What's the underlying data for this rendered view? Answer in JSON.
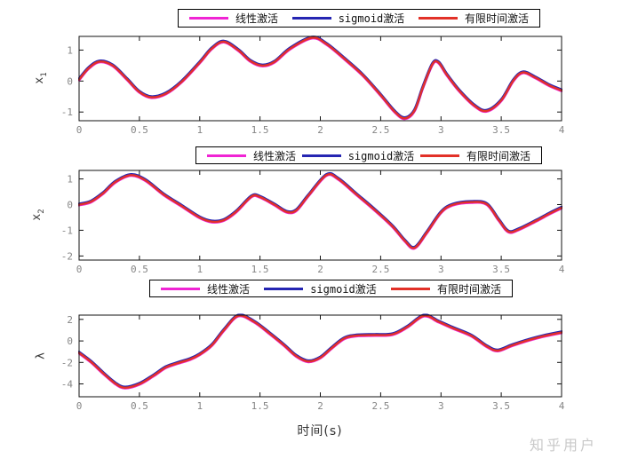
{
  "watermark": "知乎用户",
  "xlabel": "时间(s)",
  "colors": {
    "magenta": "#f024d4",
    "blue": "#2525b2",
    "red": "#e23128",
    "axis": "#111111",
    "tick_label": "#858585"
  },
  "chart_data": [
    {
      "type": "line",
      "title": "",
      "ylabel": "x_1",
      "xlabel": "",
      "xlim": [
        0,
        4
      ],
      "ylim": [
        -1.28,
        1.44
      ],
      "xticks": [
        0,
        0.5,
        1,
        1.5,
        2,
        2.5,
        3,
        3.5,
        4
      ],
      "yticks": [
        -1,
        0,
        1
      ],
      "grid": false,
      "legend_position": "above-plot",
      "series": [
        {
          "key": "linear",
          "name": "线性激活",
          "color": "#f024d4"
        },
        {
          "key": "sigmoid",
          "name": "sigmoid激活",
          "color": "#2525b2"
        },
        {
          "key": "finite-time",
          "name": "有限时间激活",
          "color": "#e23128"
        }
      ],
      "series_overlap_note": "all three series coincide visually; shared points below as [t, x1]",
      "points": [
        [
          0,
          0.05
        ],
        [
          0.08,
          0.42
        ],
        [
          0.17,
          0.63
        ],
        [
          0.28,
          0.5
        ],
        [
          0.4,
          0.05
        ],
        [
          0.5,
          -0.35
        ],
        [
          0.6,
          -0.52
        ],
        [
          0.72,
          -0.4
        ],
        [
          0.85,
          -0.02
        ],
        [
          1.0,
          0.6
        ],
        [
          1.1,
          1.05
        ],
        [
          1.2,
          1.27
        ],
        [
          1.32,
          1.0
        ],
        [
          1.42,
          0.65
        ],
        [
          1.52,
          0.5
        ],
        [
          1.62,
          0.62
        ],
        [
          1.75,
          1.05
        ],
        [
          1.93,
          1.4
        ],
        [
          2.05,
          1.2
        ],
        [
          2.2,
          0.72
        ],
        [
          2.35,
          0.2
        ],
        [
          2.5,
          -0.45
        ],
        [
          2.62,
          -1.0
        ],
        [
          2.7,
          -1.2
        ],
        [
          2.78,
          -0.95
        ],
        [
          2.85,
          -0.2
        ],
        [
          2.93,
          0.55
        ],
        [
          2.98,
          0.6
        ],
        [
          3.05,
          0.2
        ],
        [
          3.15,
          -0.3
        ],
        [
          3.28,
          -0.8
        ],
        [
          3.38,
          -0.96
        ],
        [
          3.5,
          -0.62
        ],
        [
          3.6,
          0.02
        ],
        [
          3.68,
          0.28
        ],
        [
          3.78,
          0.12
        ],
        [
          3.9,
          -0.14
        ],
        [
          4,
          -0.3
        ]
      ]
    },
    {
      "type": "line",
      "title": "",
      "ylabel": "x_2",
      "xlabel": "",
      "xlim": [
        0,
        4
      ],
      "ylim": [
        -2.16,
        1.33
      ],
      "xticks": [
        0,
        0.5,
        1,
        1.5,
        2,
        2.5,
        3,
        3.5,
        4
      ],
      "yticks": [
        -2,
        -1,
        0,
        1
      ],
      "grid": false,
      "legend_position": "above-plot",
      "series": [
        {
          "key": "linear",
          "name": "线性激活",
          "color": "#f024d4"
        },
        {
          "key": "sigmoid",
          "name": "sigmoid激活",
          "color": "#2525b2"
        },
        {
          "key": "finite-time",
          "name": "有限时间激活",
          "color": "#e23128"
        }
      ],
      "series_overlap_note": "all three series coincide visually; shared points below as [t, x2]",
      "points": [
        [
          0,
          0.0
        ],
        [
          0.1,
          0.12
        ],
        [
          0.2,
          0.45
        ],
        [
          0.3,
          0.88
        ],
        [
          0.43,
          1.15
        ],
        [
          0.55,
          0.95
        ],
        [
          0.7,
          0.4
        ],
        [
          0.85,
          -0.05
        ],
        [
          1.0,
          -0.5
        ],
        [
          1.1,
          -0.66
        ],
        [
          1.2,
          -0.6
        ],
        [
          1.3,
          -0.28
        ],
        [
          1.43,
          0.32
        ],
        [
          1.5,
          0.3
        ],
        [
          1.62,
          0.0
        ],
        [
          1.72,
          -0.28
        ],
        [
          1.8,
          -0.22
        ],
        [
          1.9,
          0.35
        ],
        [
          2.05,
          1.15
        ],
        [
          2.15,
          1.0
        ],
        [
          2.3,
          0.4
        ],
        [
          2.45,
          -0.2
        ],
        [
          2.6,
          -0.85
        ],
        [
          2.7,
          -1.4
        ],
        [
          2.78,
          -1.68
        ],
        [
          2.88,
          -1.1
        ],
        [
          3.0,
          -0.3
        ],
        [
          3.1,
          0.0
        ],
        [
          3.25,
          0.1
        ],
        [
          3.38,
          0.02
        ],
        [
          3.48,
          -0.6
        ],
        [
          3.56,
          -1.05
        ],
        [
          3.65,
          -0.95
        ],
        [
          3.8,
          -0.6
        ],
        [
          3.9,
          -0.35
        ],
        [
          4,
          -0.12
        ]
      ]
    },
    {
      "type": "line",
      "title": "",
      "ylabel": "λ",
      "xlabel": "时间(s)",
      "xlim": [
        0,
        4
      ],
      "ylim": [
        -5.2,
        2.4
      ],
      "xticks": [
        0,
        0.5,
        1,
        1.5,
        2,
        2.5,
        3,
        3.5,
        4
      ],
      "yticks": [
        -4,
        -2,
        0,
        2
      ],
      "grid": false,
      "legend_position": "above-plot",
      "series": [
        {
          "key": "linear",
          "name": "线性激活",
          "color": "#f024d4"
        },
        {
          "key": "sigmoid",
          "name": "sigmoid激活",
          "color": "#2525b2"
        },
        {
          "key": "finite-time",
          "name": "有限时间激活",
          "color": "#e23128"
        }
      ],
      "series_overlap_note": "all three series coincide visually; shared points below as [t, lambda]",
      "points": [
        [
          0,
          -1.1
        ],
        [
          0.1,
          -1.95
        ],
        [
          0.2,
          -3.0
        ],
        [
          0.3,
          -3.95
        ],
        [
          0.38,
          -4.35
        ],
        [
          0.5,
          -4.0
        ],
        [
          0.62,
          -3.2
        ],
        [
          0.72,
          -2.45
        ],
        [
          0.82,
          -2.05
        ],
        [
          0.92,
          -1.7
        ],
        [
          1.0,
          -1.25
        ],
        [
          1.1,
          -0.4
        ],
        [
          1.2,
          1.0
        ],
        [
          1.32,
          2.35
        ],
        [
          1.45,
          1.8
        ],
        [
          1.58,
          0.7
        ],
        [
          1.7,
          -0.4
        ],
        [
          1.8,
          -1.4
        ],
        [
          1.9,
          -1.9
        ],
        [
          2.0,
          -1.55
        ],
        [
          2.1,
          -0.6
        ],
        [
          2.2,
          0.25
        ],
        [
          2.3,
          0.5
        ],
        [
          2.45,
          0.55
        ],
        [
          2.6,
          0.62
        ],
        [
          2.72,
          1.3
        ],
        [
          2.86,
          2.35
        ],
        [
          2.98,
          1.8
        ],
        [
          3.1,
          1.2
        ],
        [
          3.25,
          0.5
        ],
        [
          3.38,
          -0.5
        ],
        [
          3.47,
          -0.9
        ],
        [
          3.58,
          -0.45
        ],
        [
          3.7,
          0.0
        ],
        [
          3.85,
          0.45
        ],
        [
          4,
          0.8
        ]
      ]
    }
  ]
}
